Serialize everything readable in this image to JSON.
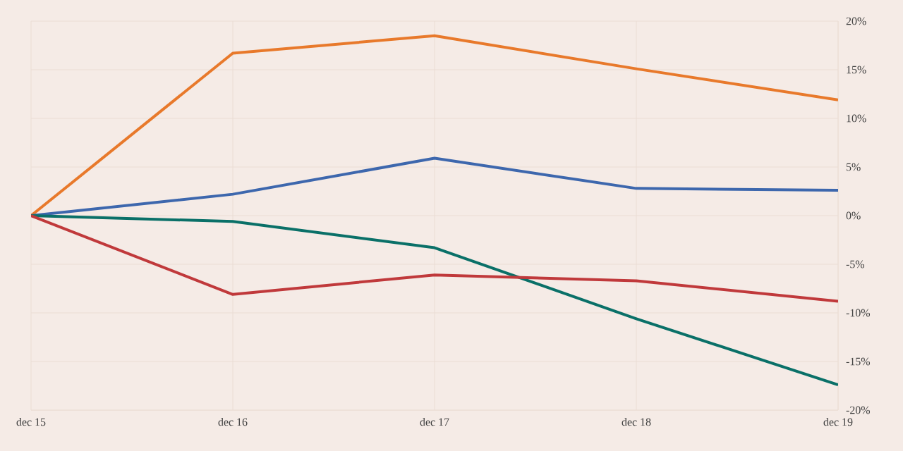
{
  "chart_data": {
    "type": "line",
    "categories": [
      "dec 15",
      "dec 16",
      "dec 17",
      "dec 18",
      "dec 19"
    ],
    "series": [
      {
        "color": "#e8792b",
        "values": [
          0,
          16.7,
          18.5,
          15.1,
          11.9
        ]
      },
      {
        "color": "#3d67ad",
        "values": [
          0,
          2.2,
          5.9,
          2.8,
          2.6
        ]
      },
      {
        "color": "#0a7068",
        "values": [
          0,
          -0.6,
          -3.3,
          -10.6,
          -17.4
        ]
      },
      {
        "color": "#c0393b",
        "values": [
          0,
          -8.1,
          -6.1,
          -6.7,
          -8.8
        ]
      }
    ],
    "ylim": [
      -20,
      20
    ],
    "yticks": [
      {
        "value": -20,
        "label": "-20%"
      },
      {
        "value": -15,
        "label": "-15%"
      },
      {
        "value": -10,
        "label": "-10%"
      },
      {
        "value": -5,
        "label": "-5%"
      },
      {
        "value": 0,
        "label": "0%"
      },
      {
        "value": 5,
        "label": "5%"
      },
      {
        "value": 10,
        "label": "10%"
      },
      {
        "value": 15,
        "label": "15%"
      },
      {
        "value": 20,
        "label": "20%"
      }
    ],
    "grid": true,
    "marker": "none",
    "line_style": "solid"
  }
}
